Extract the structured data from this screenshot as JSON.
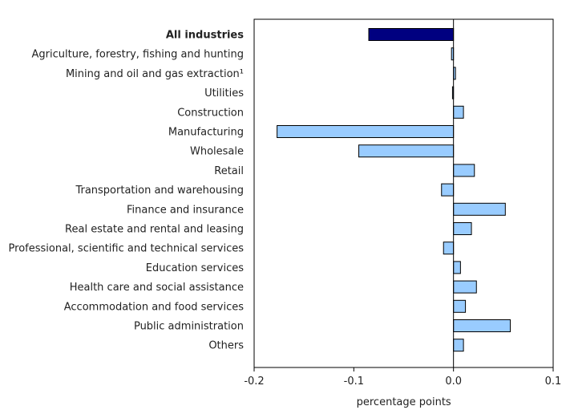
{
  "chart_data": {
    "type": "bar",
    "orientation": "horizontal",
    "categories": [
      "All industries",
      "Agriculture, forestry, fishing and hunting",
      "Mining and oil and gas extraction¹",
      "Utilities",
      "Construction",
      "Manufacturing",
      "Wholesale",
      "Retail",
      "Transportation and warehousing",
      "Finance and insurance",
      "Real estate and rental and leasing",
      "Professional, scientific and technical services",
      "Education services",
      "Health care and social assistance",
      "Accommodation and food services",
      "Public administration",
      "Others"
    ],
    "values": [
      -0.085,
      -0.002,
      0.002,
      -0.001,
      0.01,
      -0.177,
      -0.095,
      0.021,
      -0.012,
      0.052,
      0.018,
      -0.01,
      0.007,
      0.023,
      0.012,
      0.057,
      0.01
    ],
    "highlight_index": 0,
    "xlim": [
      -0.2,
      0.1
    ],
    "xticks": [
      -0.2,
      -0.1,
      0.0,
      0.1
    ],
    "xtick_labels": [
      "-0.2",
      "-0.1",
      "0.0",
      "0.1"
    ],
    "xlabel": "percentage points",
    "colors": {
      "highlight": "#000080",
      "bar": "#99ccff",
      "edge": "#000000"
    }
  }
}
